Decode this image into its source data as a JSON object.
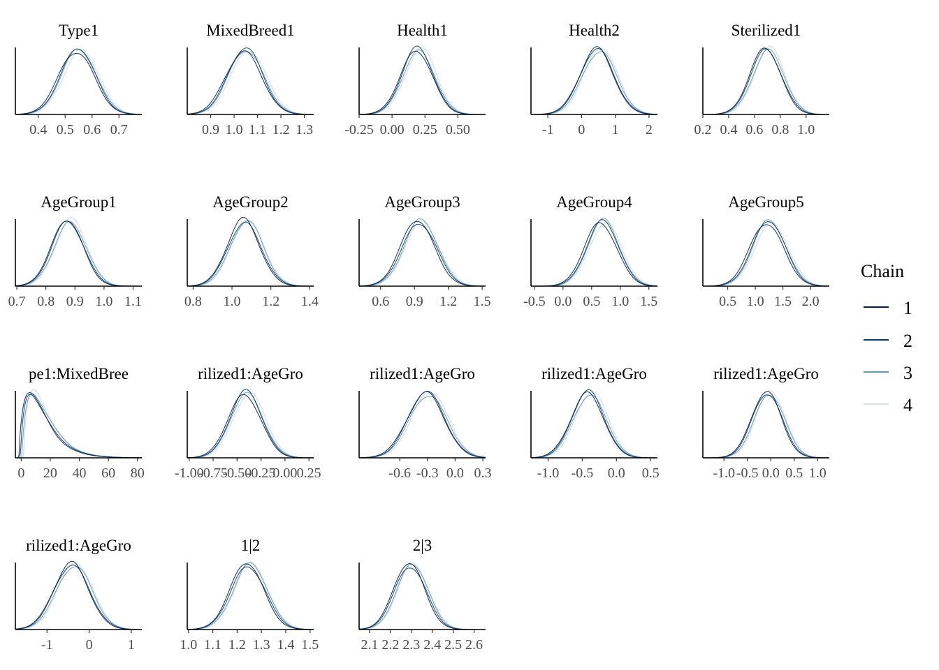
{
  "legend": {
    "title": "Chain",
    "items": [
      {
        "label": "1",
        "color": "#011f4b"
      },
      {
        "label": "2",
        "color": "#03396c"
      },
      {
        "label": "3",
        "color": "#6497b1"
      },
      {
        "label": "4",
        "color": "#d1e1ec"
      }
    ]
  },
  "chart_data": [
    {
      "type": "area",
      "title": "Type1",
      "ticks": [
        "0.4",
        "0.5",
        "0.6",
        "0.7"
      ],
      "tick_values": [
        0.4,
        0.5,
        0.6,
        0.7
      ],
      "xlim": [
        0.315,
        0.785
      ],
      "dist": "normal",
      "mean": 0.55,
      "sd": 0.065
    },
    {
      "type": "area",
      "title": "MixedBreed1",
      "ticks": [
        "0.9",
        "1.0",
        "1.1",
        "1.2",
        "1.3"
      ],
      "tick_values": [
        0.9,
        1.0,
        1.1,
        1.2,
        1.3
      ],
      "xlim": [
        0.8,
        1.34
      ],
      "dist": "normal",
      "mean": 1.05,
      "sd": 0.075
    },
    {
      "type": "area",
      "title": "Health1",
      "ticks": [
        "-0.25",
        "0.00",
        "0.25",
        "0.50"
      ],
      "tick_values": [
        -0.25,
        0.0,
        0.25,
        0.5
      ],
      "xlim": [
        -0.25,
        0.71
      ],
      "dist": "normal",
      "mean": 0.2,
      "sd": 0.12
    },
    {
      "type": "area",
      "title": "Health2",
      "ticks": [
        "-1",
        "0",
        "1",
        "2"
      ],
      "tick_values": [
        -1,
        0,
        1,
        2
      ],
      "xlim": [
        -1.5,
        2.25
      ],
      "dist": "normal",
      "mean": 0.5,
      "sd": 0.5
    },
    {
      "type": "area",
      "title": "Sterilized1",
      "ticks": [
        "0.2",
        "0.4",
        "0.6",
        "0.8",
        "1.0"
      ],
      "tick_values": [
        0.2,
        0.4,
        0.6,
        0.8,
        1.0
      ],
      "xlim": [
        0.2,
        1.18
      ],
      "dist": "normal",
      "mean": 0.7,
      "sd": 0.12
    },
    {
      "type": "area",
      "title": "AgeGroup1",
      "ticks": [
        "0.7",
        "0.8",
        "0.9",
        "1.0",
        "1.1"
      ],
      "tick_values": [
        0.7,
        0.8,
        0.9,
        1.0,
        1.1
      ],
      "xlim": [
        0.695,
        1.13
      ],
      "dist": "normal",
      "mean": 0.88,
      "sd": 0.055
    },
    {
      "type": "area",
      "title": "AgeGroup2",
      "ticks": [
        "0.8",
        "1.0",
        "1.2",
        "1.4"
      ],
      "tick_values": [
        0.8,
        1.0,
        1.2,
        1.4
      ],
      "xlim": [
        0.77,
        1.42
      ],
      "dist": "normal",
      "mean": 1.07,
      "sd": 0.085
    },
    {
      "type": "area",
      "title": "AgeGroup3",
      "ticks": [
        "0.6",
        "0.9",
        "1.2",
        "1.5"
      ],
      "tick_values": [
        0.6,
        0.9,
        1.2,
        1.5
      ],
      "xlim": [
        0.41,
        1.53
      ],
      "dist": "normal",
      "mean": 0.95,
      "sd": 0.15
    },
    {
      "type": "area",
      "title": "AgeGroup4",
      "ticks": [
        "-0.5",
        "0.0",
        "0.5",
        "1.0",
        "1.5"
      ],
      "tick_values": [
        -0.5,
        0.0,
        0.5,
        1.0,
        1.5
      ],
      "xlim": [
        -0.56,
        1.65
      ],
      "dist": "normal",
      "mean": 0.7,
      "sd": 0.28
    },
    {
      "type": "area",
      "title": "AgeGroup5",
      "ticks": [
        "0.5",
        "1.0",
        "1.5",
        "2.0"
      ],
      "tick_values": [
        0.5,
        1.0,
        1.5,
        2.0
      ],
      "xlim": [
        0.05,
        2.34
      ],
      "dist": "normal",
      "mean": 1.25,
      "sd": 0.3
    },
    {
      "type": "area",
      "title": "pe1:MixedBree",
      "ticks": [
        "0",
        "20",
        "40",
        "60",
        "80"
      ],
      "tick_values": [
        0,
        20,
        40,
        60,
        80
      ],
      "xlim": [
        -4,
        83
      ],
      "dist": "gamma",
      "shape": 1.8,
      "scale": 9
    },
    {
      "type": "area",
      "title": "rilized1:AgeGro",
      "ticks": [
        "-1.00",
        "-0.75",
        "-0.50",
        "-0.25",
        "0.00",
        "0.25"
      ],
      "tick_values": [
        -1.0,
        -0.75,
        -0.5,
        -0.25,
        0.0,
        0.25
      ],
      "xlim": [
        -1.02,
        0.3
      ],
      "dist": "normal",
      "mean": -0.4,
      "sd": 0.17
    },
    {
      "type": "area",
      "title": "rilized1:AgeGro",
      "ticks": [
        "-0.6",
        "-0.3",
        "0.0",
        "0.3"
      ],
      "tick_values": [
        -0.6,
        -0.3,
        0.0,
        0.3
      ],
      "xlim": [
        -1.04,
        0.33
      ],
      "dist": "normal",
      "mean": -0.3,
      "sd": 0.2
    },
    {
      "type": "area",
      "title": "rilized1:AgeGro",
      "ticks": [
        "-1.0",
        "-0.5",
        "0.0",
        "0.5"
      ],
      "tick_values": [
        -1.0,
        -0.5,
        0.0,
        0.5
      ],
      "xlim": [
        -1.25,
        0.6
      ],
      "dist": "normal",
      "mean": -0.4,
      "sd": 0.24
    },
    {
      "type": "area",
      "title": "rilized1:AgeGro",
      "ticks": [
        "-1.0",
        "-0.5",
        "0.0",
        "0.5",
        "1.0"
      ],
      "tick_values": [
        -1.0,
        -0.5,
        0.0,
        0.5,
        1.0
      ],
      "xlim": [
        -1.45,
        1.25
      ],
      "dist": "normal",
      "mean": -0.05,
      "sd": 0.32
    },
    {
      "type": "area",
      "title": "rilized1:AgeGro",
      "ticks": [
        "-1",
        "0",
        "1"
      ],
      "tick_values": [
        -1,
        0,
        1
      ],
      "xlim": [
        -1.75,
        1.25
      ],
      "dist": "normal",
      "mean": -0.38,
      "sd": 0.42
    },
    {
      "type": "area",
      "title": "1|2",
      "ticks": [
        "1.0",
        "1.1",
        "1.2",
        "1.3",
        "1.4",
        "1.5"
      ],
      "tick_values": [
        1.0,
        1.1,
        1.2,
        1.3,
        1.4,
        1.5
      ],
      "xlim": [
        0.995,
        1.515
      ],
      "dist": "normal",
      "mean": 1.25,
      "sd": 0.07
    },
    {
      "type": "area",
      "title": "2|3",
      "ticks": [
        "2.1",
        "2.2",
        "2.3",
        "2.4",
        "2.5",
        "2.6"
      ],
      "tick_values": [
        2.1,
        2.2,
        2.3,
        2.4,
        2.5,
        2.6
      ],
      "xlim": [
        2.05,
        2.655
      ],
      "dist": "normal",
      "mean": 2.3,
      "sd": 0.075
    }
  ]
}
